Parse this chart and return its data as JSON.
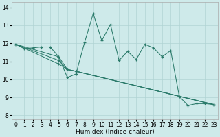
{
  "xlabel": "Humidex (Indice chaleur)",
  "xlim": [
    -0.5,
    23.5
  ],
  "ylim": [
    7.8,
    14.3
  ],
  "yticks": [
    8,
    9,
    10,
    11,
    12,
    13,
    14
  ],
  "xticks": [
    0,
    1,
    2,
    3,
    4,
    5,
    6,
    7,
    8,
    9,
    10,
    11,
    12,
    13,
    14,
    15,
    16,
    17,
    18,
    19,
    20,
    21,
    22,
    23
  ],
  "background_color": "#ceeaea",
  "grid_color": "#b0d4d4",
  "line_color": "#2a7a6a",
  "line1_x": [
    0,
    1,
    2,
    3,
    4,
    5,
    6,
    7,
    8,
    9,
    10,
    11,
    12,
    13,
    14,
    15,
    16,
    17,
    18,
    19,
    20,
    21,
    22,
    23
  ],
  "line1_y": [
    11.95,
    11.7,
    11.75,
    11.8,
    11.8,
    11.25,
    10.1,
    10.3,
    12.05,
    13.65,
    12.15,
    13.05,
    11.05,
    11.55,
    11.1,
    11.95,
    11.75,
    11.25,
    11.6,
    9.05,
    8.55,
    8.65,
    8.65,
    8.6
  ],
  "line2_x": [
    0,
    5,
    6,
    7,
    23
  ],
  "line2_y": [
    11.95,
    10.85,
    10.55,
    10.45,
    8.6
  ],
  "line3_x": [
    0,
    5,
    6,
    7,
    23
  ],
  "line3_y": [
    11.95,
    11.05,
    10.55,
    10.45,
    8.6
  ],
  "line4_x": [
    0,
    5,
    6,
    7,
    23
  ],
  "line4_y": [
    11.95,
    11.25,
    10.55,
    10.45,
    8.6
  ]
}
